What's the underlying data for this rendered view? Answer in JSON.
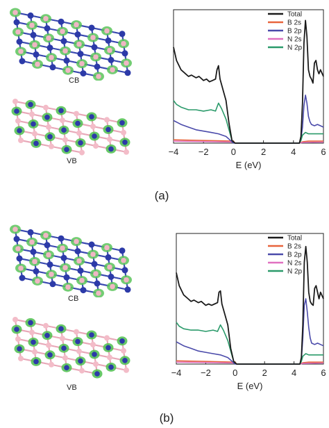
{
  "panels": [
    {
      "caption": "(a)",
      "lattice_cb_label": "CB",
      "lattice_vb_label": "VB",
      "dos_chart": {
        "type": "line",
        "xlabel": "E (eV)",
        "xlim": [
          -4,
          6
        ],
        "xticks": [
          "−4",
          "−2",
          "0",
          "2",
          "4",
          "6"
        ],
        "xtick_values": [
          -4,
          -2,
          0,
          2,
          4,
          6
        ],
        "ylim": [
          0,
          1
        ],
        "legend_position": "top-right",
        "series": [
          {
            "name": "Total",
            "color": "#1a1a1a",
            "x": [
              -4,
              -3.8,
              -3.5,
              -3.2,
              -3,
              -2.8,
              -2.5,
              -2.3,
              -2,
              -1.8,
              -1.6,
              -1.4,
              -1.2,
              -1.1,
              -1,
              -0.9,
              -0.7,
              -0.5,
              -0.3,
              -0.1,
              0.1,
              0.5,
              1,
              2,
              3,
              4,
              4.2,
              4.4,
              4.5,
              4.6,
              4.7,
              4.8,
              4.9,
              5,
              5.1,
              5.2,
              5.3,
              5.4,
              5.5,
              5.6,
              5.7,
              5.8,
              6
            ],
            "y": [
              0.72,
              0.62,
              0.55,
              0.52,
              0.5,
              0.51,
              0.49,
              0.5,
              0.47,
              0.48,
              0.46,
              0.47,
              0.48,
              0.55,
              0.58,
              0.48,
              0.4,
              0.32,
              0.15,
              0.02,
              0,
              0,
              0,
              0,
              0,
              0,
              0,
              0,
              0.05,
              0.3,
              0.75,
              0.92,
              0.8,
              0.55,
              0.5,
              0.48,
              0.45,
              0.6,
              0.62,
              0.55,
              0.52,
              0.55,
              0.5
            ]
          },
          {
            "name": "B 2s",
            "color": "#e8643c",
            "x": [
              -4,
              -2,
              0,
              0.1,
              4.4,
              4.6,
              5,
              6
            ],
            "y": [
              0.025,
              0.02,
              0.015,
              0,
              0,
              0.01,
              0.015,
              0.015
            ]
          },
          {
            "name": "B 2p",
            "color": "#4a4aaa",
            "x": [
              -4,
              -3.5,
              -3,
              -2.5,
              -2,
              -1.5,
              -1,
              -0.5,
              -0.2,
              0,
              0.2,
              4,
              4.4,
              4.5,
              4.6,
              4.7,
              4.8,
              4.9,
              5,
              5.1,
              5.2,
              5.4,
              5.6,
              5.8,
              6
            ],
            "y": [
              0.17,
              0.14,
              0.12,
              0.1,
              0.09,
              0.08,
              0.07,
              0.05,
              0.02,
              0,
              0,
              0,
              0,
              0.03,
              0.12,
              0.28,
              0.36,
              0.3,
              0.2,
              0.16,
              0.14,
              0.13,
              0.14,
              0.13,
              0.12
            ]
          },
          {
            "name": "N 2s",
            "color": "#e070c0",
            "x": [
              -4,
              -2,
              0,
              0.1,
              4.4,
              4.6,
              6
            ],
            "y": [
              0.015,
              0.012,
              0.008,
              0,
              0,
              0.005,
              0.008
            ]
          },
          {
            "name": "N 2p",
            "color": "#2a9a6a",
            "x": [
              -4,
              -3.8,
              -3.5,
              -3,
              -2.5,
              -2,
              -1.5,
              -1.2,
              -1,
              -0.8,
              -0.5,
              -0.3,
              -0.1,
              0.1,
              4,
              4.4,
              4.5,
              4.6,
              4.8,
              5,
              5.5,
              6
            ],
            "y": [
              0.32,
              0.29,
              0.27,
              0.25,
              0.25,
              0.24,
              0.25,
              0.24,
              0.3,
              0.26,
              0.18,
              0.1,
              0.02,
              0,
              0,
              0,
              0.02,
              0.06,
              0.08,
              0.07,
              0.07,
              0.07
            ]
          }
        ]
      }
    },
    {
      "caption": "(b)",
      "lattice_cb_label": "CB",
      "lattice_vb_label": "VB",
      "dos_chart": {
        "type": "line",
        "xlabel": "E (eV)",
        "xlim": [
          -4,
          6
        ],
        "xticks": [
          "−4",
          "−2",
          "0",
          "2",
          "4",
          "6"
        ],
        "xtick_values": [
          -4,
          -2,
          0,
          2,
          4,
          6
        ],
        "ylim": [
          0,
          1
        ],
        "legend_position": "top-right",
        "series": [
          {
            "name": "Total",
            "color": "#1a1a1a",
            "x": [
              -4,
              -3.8,
              -3.5,
              -3.2,
              -3,
              -2.8,
              -2.5,
              -2.3,
              -2,
              -1.8,
              -1.6,
              -1.4,
              -1.2,
              -1.1,
              -1,
              -0.9,
              -0.7,
              -0.5,
              -0.3,
              -0.1,
              0.1,
              0.5,
              1,
              2,
              3,
              4,
              4.2,
              4.4,
              4.5,
              4.6,
              4.7,
              4.8,
              4.9,
              5,
              5.1,
              5.2,
              5.3,
              5.4,
              5.5,
              5.6,
              5.7,
              5.8,
              6
            ],
            "y": [
              0.7,
              0.6,
              0.53,
              0.5,
              0.48,
              0.49,
              0.47,
              0.48,
              0.45,
              0.46,
              0.45,
              0.46,
              0.47,
              0.55,
              0.56,
              0.46,
              0.38,
              0.3,
              0.12,
              0.02,
              0,
              0,
              0,
              0,
              0,
              0,
              0,
              0,
              0.05,
              0.3,
              0.78,
              0.9,
              0.78,
              0.55,
              0.48,
              0.46,
              0.45,
              0.58,
              0.6,
              0.55,
              0.5,
              0.55,
              0.5
            ]
          },
          {
            "name": "B 2s",
            "color": "#e8643c",
            "x": [
              -4,
              -2,
              0,
              0.1,
              4.4,
              4.6,
              5,
              6
            ],
            "y": [
              0.025,
              0.02,
              0.015,
              0,
              0,
              0.01,
              0.015,
              0.015
            ]
          },
          {
            "name": "B 2p",
            "color": "#4a4aaa",
            "x": [
              -4,
              -3.5,
              -3,
              -2.5,
              -2,
              -1.5,
              -1,
              -0.5,
              -0.2,
              0,
              0.2,
              4,
              4.4,
              4.5,
              4.6,
              4.7,
              4.8,
              4.9,
              5,
              5.1,
              5.2,
              5.4,
              5.6,
              5.8,
              6
            ],
            "y": [
              0.17,
              0.14,
              0.12,
              0.1,
              0.09,
              0.08,
              0.07,
              0.05,
              0.02,
              0,
              0,
              0,
              0,
              0.03,
              0.2,
              0.45,
              0.5,
              0.4,
              0.28,
              0.2,
              0.16,
              0.15,
              0.16,
              0.15,
              0.14
            ]
          },
          {
            "name": "N 2s",
            "color": "#e070c0",
            "x": [
              -4,
              -2,
              0,
              0.1,
              4.4,
              4.6,
              6
            ],
            "y": [
              0.015,
              0.012,
              0.008,
              0,
              0,
              0.005,
              0.008
            ]
          },
          {
            "name": "N 2p",
            "color": "#2a9a6a",
            "x": [
              -4,
              -3.8,
              -3.5,
              -3,
              -2.5,
              -2,
              -1.5,
              -1.2,
              -1,
              -0.8,
              -0.5,
              -0.3,
              -0.1,
              0.1,
              4,
              4.4,
              4.5,
              4.6,
              4.8,
              5,
              5.5,
              6
            ],
            "y": [
              0.32,
              0.29,
              0.27,
              0.26,
              0.26,
              0.25,
              0.26,
              0.25,
              0.3,
              0.26,
              0.18,
              0.1,
              0.02,
              0,
              0,
              0,
              0.02,
              0.06,
              0.08,
              0.07,
              0.07,
              0.07
            ]
          }
        ]
      }
    }
  ]
}
